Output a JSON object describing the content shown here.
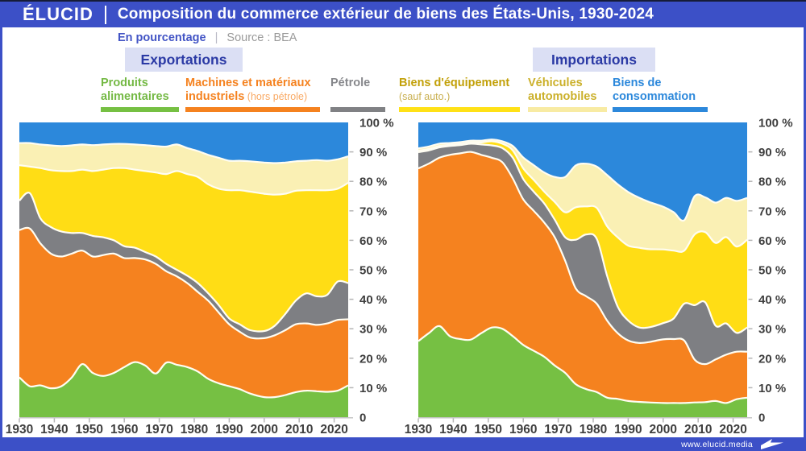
{
  "header": {
    "logo": "ÉLUCID",
    "title": "Composition du commerce extérieur de biens des États-Unis, 1930-2024"
  },
  "subtitle": {
    "unit": "En pourcentage",
    "separator": "|",
    "source": "Source : BEA"
  },
  "footer": {
    "url": "www.elucid.media"
  },
  "colors": {
    "header_blue": "#3C50C7",
    "badge_bg": "#DBDFF4",
    "badge_text": "#2B3AA5",
    "axis_text": "#3E3E3E",
    "axis_line": "#C6C6C6",
    "boundary_stroke": "#FFFDF2",
    "food_green": "#76C043",
    "industrial_orange": "#F5821F",
    "petrol_gray": "#7E7F83",
    "equipment_yellow": "#FFDD15",
    "vehicles_cream": "#FAF0B4",
    "consumption_blue": "#2C88DB"
  },
  "legend": [
    {
      "line1": "Produits",
      "line2": "alimentaires",
      "sub": "",
      "text_color": "#74B944",
      "sub_color": "",
      "bar_color": "#76C043"
    },
    {
      "line1": "Machines et matériaux",
      "line2": "industriels",
      "sub": " (hors pétrole)",
      "text_color": "#F5821F",
      "sub_color": "#F9A963",
      "bar_color": "#F5821F"
    },
    {
      "line1": "",
      "line2": "Pétrole",
      "sub": "",
      "text_color": "#86878B",
      "sub_color": "",
      "bar_color": "#808184"
    },
    {
      "line1": "Biens d'équipement",
      "line2": "",
      "sub": "(sauf auto.)",
      "text_color": "#C2A008",
      "sub_color": "#C9AF4F",
      "bar_color": "#FFE117"
    },
    {
      "line1": "Véhicules",
      "line2": "automobiles",
      "sub": "",
      "text_color": "#CBB02A",
      "sub_color": "",
      "bar_color": "#F8EBA3"
    },
    {
      "line1": "Biens de",
      "line2": "consommation",
      "sub": "",
      "text_color": "#2C88DB",
      "sub_color": "",
      "bar_color": "#2C88DB"
    }
  ],
  "chart_data": [
    {
      "type": "area",
      "stacked": true,
      "title": "Exportations",
      "ylabel": "%",
      "ylim": [
        0,
        100
      ],
      "grid": false,
      "y_ticks": [
        100,
        90,
        80,
        70,
        60,
        50,
        40,
        30,
        20,
        10,
        0
      ],
      "y_tick_labels": [
        "100 %",
        "90 %",
        "80 %",
        "70 %",
        "60 %",
        "50 %",
        "40 %",
        "30 %",
        "20 %",
        "10 %",
        "0"
      ],
      "x_ticks": [
        1930,
        1940,
        1950,
        1960,
        1970,
        1980,
        1990,
        2000,
        2010,
        2020
      ],
      "years": [
        1930,
        1933,
        1936,
        1939,
        1942,
        1945,
        1948,
        1951,
        1954,
        1957,
        1960,
        1963,
        1966,
        1969,
        1972,
        1975,
        1978,
        1981,
        1984,
        1987,
        1990,
        1993,
        1996,
        2000,
        2003,
        2006,
        2009,
        2012,
        2015,
        2018,
        2021,
        2024
      ],
      "series": [
        {
          "name": "Produits alimentaires",
          "color_key": "food_green",
          "color": "#76C043",
          "values": [
            13.5,
            10.5,
            10.8,
            9.8,
            10.5,
            13.5,
            18,
            15,
            14,
            15,
            17,
            18.7,
            17.5,
            14.8,
            18.5,
            17.8,
            17,
            15.5,
            13,
            11.5,
            10.5,
            9.5,
            8,
            6.8,
            6.8,
            7.5,
            8.5,
            9,
            8.8,
            8.6,
            9,
            10.8
          ]
        },
        {
          "name": "Machines et matériaux industriels (hors pétrole)",
          "color_key": "industrial_orange",
          "color": "#F5821F",
          "values": [
            50,
            53.5,
            48.2,
            45.7,
            44,
            42,
            38.5,
            39.5,
            41,
            40.5,
            37,
            35.3,
            36,
            37.2,
            31,
            30,
            28.5,
            27,
            26.5,
            24,
            21,
            19.5,
            19,
            20,
            21,
            22,
            23,
            22.8,
            22.5,
            23.2,
            24,
            22.4
          ]
        },
        {
          "name": "Pétrole",
          "color_key": "petrol_gray",
          "color": "#7E7F83",
          "values": [
            10,
            12,
            8.5,
            9,
            8.5,
            7,
            6,
            7,
            6,
            4.5,
            4,
            3.5,
            2.5,
            2.5,
            2.5,
            2.2,
            2.5,
            3,
            2.5,
            2.5,
            2,
            2.5,
            2.5,
            2.4,
            3.2,
            5.5,
            8,
            10.2,
            9.7,
            9.7,
            13,
            12.3
          ]
        },
        {
          "name": "Biens d'équipement (sauf auto.)",
          "color_key": "equipment_yellow",
          "color": "#FFDD15",
          "values": [
            12,
            9,
            17,
            19.3,
            20.5,
            21,
            21.5,
            22,
            23,
            24.5,
            26.5,
            26.5,
            27.5,
            28.5,
            30.5,
            33.5,
            34.5,
            36,
            37,
            39.5,
            43.5,
            45.5,
            47,
            46.6,
            44.5,
            40.8,
            37.3,
            35,
            36,
            35.5,
            31.5,
            34
          ]
        },
        {
          "name": "Véhicules automobiles",
          "color_key": "vehicles_cream",
          "color": "#FAF0B4",
          "values": [
            7.5,
            8,
            8,
            8.4,
            8.5,
            8.7,
            8.5,
            8.8,
            8.5,
            8.2,
            8.2,
            8.5,
            8.8,
            9,
            9.3,
            9,
            8.8,
            8.8,
            10,
            10.5,
            10,
            10,
            10.3,
            10.6,
            10.7,
            10.6,
            10,
            10,
            10.2,
            10,
            10,
            9
          ]
        },
        {
          "name": "Biens de consommation",
          "color_key": "consumption_blue",
          "color": "#2C88DB",
          "values": [
            7,
            7,
            7.5,
            7.8,
            8,
            7.8,
            7.5,
            7.7,
            7.5,
            7.3,
            7.3,
            7.5,
            7.7,
            8,
            8.2,
            7.5,
            8.7,
            9.7,
            11,
            12,
            13,
            13,
            13.2,
            13.6,
            13.8,
            13.6,
            13.2,
            13,
            12.8,
            13,
            12.5,
            11.5
          ]
        }
      ]
    },
    {
      "type": "area",
      "stacked": true,
      "title": "Importations",
      "ylabel": "%",
      "ylim": [
        0,
        100
      ],
      "grid": false,
      "y_ticks": [
        100,
        90,
        80,
        70,
        60,
        50,
        40,
        30,
        20,
        10,
        0
      ],
      "y_tick_labels": [
        "100 %",
        "90 %",
        "80 %",
        "70 %",
        "60 %",
        "50 %",
        "40 %",
        "30 %",
        "20 %",
        "10 %",
        "0"
      ],
      "x_ticks": [
        1930,
        1940,
        1950,
        1960,
        1970,
        1980,
        1990,
        2000,
        2010,
        2020
      ],
      "years": [
        1930,
        1933,
        1936,
        1939,
        1942,
        1945,
        1948,
        1951,
        1954,
        1957,
        1960,
        1963,
        1966,
        1969,
        1972,
        1975,
        1978,
        1981,
        1984,
        1987,
        1990,
        1993,
        1996,
        2000,
        2003,
        2006,
        2009,
        2012,
        2015,
        2018,
        2021,
        2024
      ],
      "series": [
        {
          "name": "Produits alimentaires",
          "color_key": "food_green",
          "color": "#76C043",
          "values": [
            25.8,
            28.5,
            30.9,
            27.5,
            26.5,
            26.3,
            28.5,
            30.4,
            30,
            27.5,
            24.5,
            22.5,
            20.5,
            17.5,
            15,
            11.2,
            9.5,
            8.5,
            6.6,
            6.2,
            5.5,
            5.2,
            5,
            4.8,
            4.8,
            4.8,
            5,
            5.1,
            5.5,
            4.8,
            6.1,
            6.6
          ]
        },
        {
          "name": "Machines et matériaux industriels (hors pétrole)",
          "color_key": "industrial_orange",
          "color": "#F5821F",
          "values": [
            58.6,
            57.5,
            57.1,
            61.5,
            63,
            63.7,
            60.5,
            57.6,
            56.5,
            53.5,
            49.4,
            47.5,
            45.5,
            43.5,
            38,
            32.5,
            31.5,
            30,
            26.1,
            22.3,
            20.5,
            20,
            20.5,
            21.6,
            21.7,
            21.2,
            14.5,
            12.9,
            14.1,
            16.4,
            16.1,
            15.6
          ]
        },
        {
          "name": "Pétrole",
          "color_key": "petrol_gray",
          "color": "#7E7F83",
          "values": [
            5.5,
            4.5,
            3.5,
            3,
            2.8,
            2.8,
            3.5,
            4.2,
            4.8,
            7,
            6.9,
            6.5,
            6.5,
            6,
            8,
            16.5,
            21,
            22,
            15.1,
            9,
            6.8,
            5.3,
            5,
            5.5,
            7,
            12.5,
            18.5,
            21,
            11.4,
            10.6,
            6.4,
            8.2
          ]
        },
        {
          "name": "Biens d'équipement (sauf auto.)",
          "color_key": "equipment_yellow",
          "color": "#FFDD15",
          "values": [
            0.5,
            0.5,
            0.5,
            0.4,
            0.4,
            0.4,
            0.7,
            1.4,
            1.5,
            2.5,
            3.6,
            4,
            4,
            6,
            8.5,
            11,
            9.5,
            10.5,
            16.9,
            23.5,
            25.4,
            27,
            26.5,
            25,
            23,
            18,
            24,
            23.8,
            28.1,
            29.3,
            29.3,
            29.8
          ]
        },
        {
          "name": "Véhicules automobiles",
          "color_key": "vehicles_cream",
          "color": "#FAF0B4",
          "values": [
            0.8,
            0.8,
            0.8,
            0.6,
            0.6,
            0.6,
            0.6,
            0.6,
            0.8,
            1.5,
            3.7,
            5,
            6.5,
            8.5,
            12,
            14.2,
            14.5,
            14,
            17.4,
            18,
            18.2,
            17,
            16,
            14.5,
            13,
            10.3,
            13,
            11.8,
            13.7,
            13.3,
            15.5,
            14.2
          ]
        },
        {
          "name": "Biens de consommation",
          "color_key": "consumption_blue",
          "color": "#2C88DB",
          "values": [
            8.8,
            8.2,
            7.2,
            7,
            6.7,
            6.2,
            6.2,
            5.8,
            6.4,
            8,
            11.9,
            14.5,
            17,
            18.5,
            18.5,
            14.6,
            14,
            15,
            17.9,
            21,
            23.6,
            25.5,
            27,
            28.6,
            30.5,
            33.2,
            25,
            25.4,
            27.2,
            25.6,
            26.6,
            25.6
          ]
        }
      ]
    }
  ]
}
